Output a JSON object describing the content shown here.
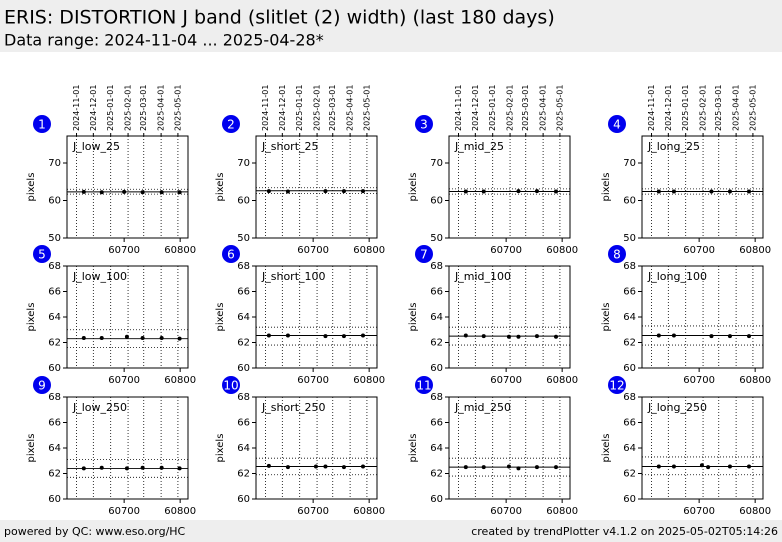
{
  "header": {
    "title": "ERIS: DISTORTION J band (slitlet (2) width) (last 180 days)",
    "subtitle": "Data range: 2024-11-04 ... 2025-04-28*"
  },
  "footer": {
    "left": "powered by QC: www.eso.org/HC",
    "right": "created by trendPlotter v4.1.2 on 2025-05-02T05:14:26"
  },
  "chart_data": [
    {
      "type": "scatter",
      "label": "1",
      "title": "J_low_25",
      "ylabel": "pixels",
      "color": "#000000",
      "x": [
        60628,
        60660,
        60700,
        60733,
        60767,
        60799
      ],
      "values": [
        62.3,
        62.2,
        62.3,
        62.2,
        62.2,
        62.2
      ],
      "ref": {
        "value": 62.3,
        "lower": 61.7,
        "upper": 63.0
      },
      "xlim": [
        60598,
        60814
      ],
      "ylim": [
        50,
        77.2
      ],
      "xticks": [
        60700,
        60800
      ],
      "yticks": [
        50,
        60,
        70
      ],
      "x2ticks": [
        {
          "value": 60615,
          "label": "2024-11-01"
        },
        {
          "value": 60645,
          "label": "2024-12-01"
        },
        {
          "value": 60676,
          "label": "2025-01-01"
        },
        {
          "value": 60707,
          "label": "2025-02-01"
        },
        {
          "value": 60735,
          "label": "2025-03-01"
        },
        {
          "value": 60766,
          "label": "2025-04-01"
        },
        {
          "value": 60796,
          "label": "2025-05-01"
        }
      ]
    },
    {
      "type": "scatter",
      "label": "2",
      "title": "J_short_25",
      "ylabel": "pixels",
      "color": "#000000",
      "x": [
        60621,
        60655,
        60722,
        60755,
        60789
      ],
      "values": [
        62.5,
        62.4,
        62.5,
        62.5,
        62.5
      ],
      "ref": {
        "value": 62.6,
        "lower": 61.9,
        "upper": 63.4
      },
      "xlim": [
        60598,
        60814
      ],
      "ylim": [
        50,
        77.2
      ],
      "xticks": [
        60700,
        60800
      ],
      "yticks": [
        50,
        60,
        70
      ],
      "x2ticks": [
        {
          "value": 60615,
          "label": "2024-11-01"
        },
        {
          "value": 60645,
          "label": "2024-12-01"
        },
        {
          "value": 60676,
          "label": "2025-01-01"
        },
        {
          "value": 60707,
          "label": "2025-02-01"
        },
        {
          "value": 60735,
          "label": "2025-03-01"
        },
        {
          "value": 60766,
          "label": "2025-04-01"
        },
        {
          "value": 60796,
          "label": "2025-05-01"
        }
      ]
    },
    {
      "type": "scatter",
      "label": "3",
      "title": "J_mid_25",
      "ylabel": "pixels",
      "color": "#000000",
      "x": [
        60628,
        60660,
        60722,
        60755,
        60789
      ],
      "values": [
        62.4,
        62.4,
        62.5,
        62.5,
        62.4
      ],
      "ref": {
        "value": 62.4,
        "lower": 61.7,
        "upper": 63.1
      },
      "xlim": [
        60598,
        60814
      ],
      "ylim": [
        50,
        77.2
      ],
      "xticks": [
        60700,
        60800
      ],
      "yticks": [
        50,
        60,
        70
      ],
      "x2ticks": [
        {
          "value": 60615,
          "label": "2024-11-01"
        },
        {
          "value": 60645,
          "label": "2024-12-01"
        },
        {
          "value": 60676,
          "label": "2025-01-01"
        },
        {
          "value": 60707,
          "label": "2025-02-01"
        },
        {
          "value": 60735,
          "label": "2025-03-01"
        },
        {
          "value": 60766,
          "label": "2025-04-01"
        },
        {
          "value": 60796,
          "label": "2025-05-01"
        }
      ]
    },
    {
      "type": "scatter",
      "label": "4",
      "title": "J_long_25",
      "ylabel": "pixels",
      "color": "#000000",
      "x": [
        60628,
        60655,
        60722,
        60755,
        60789
      ],
      "values": [
        62.4,
        62.4,
        62.4,
        62.4,
        62.4
      ],
      "ref": {
        "value": 62.4,
        "lower": 61.7,
        "upper": 63.1
      },
      "xlim": [
        60598,
        60814
      ],
      "ylim": [
        50,
        77.2
      ],
      "xticks": [
        60700,
        60800
      ],
      "yticks": [
        50,
        60,
        70
      ],
      "x2ticks": [
        {
          "value": 60615,
          "label": "2024-11-01"
        },
        {
          "value": 60645,
          "label": "2024-12-01"
        },
        {
          "value": 60676,
          "label": "2025-01-01"
        },
        {
          "value": 60707,
          "label": "2025-02-01"
        },
        {
          "value": 60735,
          "label": "2025-03-01"
        },
        {
          "value": 60766,
          "label": "2025-04-01"
        },
        {
          "value": 60796,
          "label": "2025-05-01"
        }
      ]
    },
    {
      "type": "scatter",
      "label": "5",
      "title": "J_low_100",
      "ylabel": "pixels",
      "color": "#000000",
      "x": [
        60628,
        60660,
        60705,
        60733,
        60767,
        60799
      ],
      "values": [
        62.35,
        62.35,
        62.45,
        62.35,
        62.35,
        62.3
      ],
      "ref": {
        "value": 62.3,
        "lower": 61.6,
        "upper": 63.0
      },
      "xlim": [
        60598,
        60814
      ],
      "ylim": [
        60,
        68
      ],
      "xticks": [
        60700,
        60800
      ],
      "yticks": [
        60,
        62,
        64,
        66,
        68
      ],
      "xgrid": [
        60615,
        60645,
        60676,
        60707,
        60735,
        60766,
        60796
      ]
    },
    {
      "type": "scatter",
      "label": "6",
      "title": "J_short_100",
      "ylabel": "pixels",
      "color": "#000000",
      "x": [
        60621,
        60655,
        60722,
        60755,
        60789
      ],
      "values": [
        62.55,
        62.55,
        62.5,
        62.5,
        62.55
      ],
      "ref": {
        "value": 62.55,
        "lower": 61.8,
        "upper": 63.2
      },
      "xlim": [
        60598,
        60814
      ],
      "ylim": [
        60,
        68
      ],
      "xticks": [
        60700,
        60800
      ],
      "yticks": [
        60,
        62,
        64,
        66,
        68
      ],
      "xgrid": [
        60615,
        60645,
        60676,
        60707,
        60735,
        60766,
        60796
      ]
    },
    {
      "type": "scatter",
      "label": "7",
      "title": "J_mid_100",
      "ylabel": "pixels",
      "color": "#000000",
      "x": [
        60628,
        60660,
        60705,
        60722,
        60755,
        60789
      ],
      "values": [
        62.55,
        62.5,
        62.45,
        62.45,
        62.5,
        62.45
      ],
      "ref": {
        "value": 62.5,
        "lower": 61.8,
        "upper": 63.2
      },
      "xlim": [
        60598,
        60814
      ],
      "ylim": [
        60,
        68
      ],
      "xticks": [
        60700,
        60800
      ],
      "yticks": [
        60,
        62,
        64,
        66,
        68
      ],
      "xgrid": [
        60615,
        60645,
        60676,
        60707,
        60735,
        60766,
        60796
      ]
    },
    {
      "type": "scatter",
      "label": "8",
      "title": "J_long_100",
      "ylabel": "pixels",
      "color": "#000000",
      "x": [
        60628,
        60655,
        60722,
        60755,
        60789
      ],
      "values": [
        62.55,
        62.55,
        62.5,
        62.5,
        62.5
      ],
      "ref": {
        "value": 62.55,
        "lower": 61.8,
        "upper": 63.3
      },
      "xlim": [
        60598,
        60814
      ],
      "ylim": [
        60,
        68
      ],
      "xticks": [
        60700,
        60800
      ],
      "yticks": [
        60,
        62,
        64,
        66,
        68
      ],
      "xgrid": [
        60615,
        60645,
        60676,
        60707,
        60735,
        60766,
        60796
      ]
    },
    {
      "type": "scatter",
      "label": "9",
      "title": "J_low_250",
      "ylabel": "pixels",
      "color": "#000000",
      "x": [
        60628,
        60660,
        60705,
        60733,
        60767,
        60799
      ],
      "values": [
        62.4,
        62.45,
        62.4,
        62.45,
        62.45,
        62.4
      ],
      "ref": {
        "value": 62.4,
        "lower": 61.7,
        "upper": 63.1
      },
      "xlim": [
        60598,
        60814
      ],
      "ylim": [
        60,
        68
      ],
      "xticks": [
        60700,
        60800
      ],
      "yticks": [
        60,
        62,
        64,
        66,
        68
      ],
      "xgrid": [
        60615,
        60645,
        60676,
        60707,
        60735,
        60766,
        60796
      ]
    },
    {
      "type": "scatter",
      "label": "10",
      "title": "J_short_250",
      "ylabel": "pixels",
      "color": "#000000",
      "x": [
        60621,
        60655,
        60705,
        60722,
        60755,
        60789
      ],
      "values": [
        62.6,
        62.5,
        62.55,
        62.55,
        62.5,
        62.55
      ],
      "ref": {
        "value": 62.55,
        "lower": 61.9,
        "upper": 63.2
      },
      "xlim": [
        60598,
        60814
      ],
      "ylim": [
        60,
        68
      ],
      "xticks": [
        60700,
        60800
      ],
      "yticks": [
        60,
        62,
        64,
        66,
        68
      ],
      "xgrid": [
        60615,
        60645,
        60676,
        60707,
        60735,
        60766,
        60796
      ]
    },
    {
      "type": "scatter",
      "label": "11",
      "title": "J_mid_250",
      "ylabel": "pixels",
      "color": "#000000",
      "x": [
        60628,
        60660,
        60705,
        60722,
        60755,
        60789
      ],
      "values": [
        62.5,
        62.5,
        62.55,
        62.4,
        62.5,
        62.5
      ],
      "ref": {
        "value": 62.5,
        "lower": 61.8,
        "upper": 63.2
      },
      "xlim": [
        60598,
        60814
      ],
      "ylim": [
        60,
        68
      ],
      "xticks": [
        60700,
        60800
      ],
      "yticks": [
        60,
        62,
        64,
        66,
        68
      ],
      "xgrid": [
        60615,
        60645,
        60676,
        60707,
        60735,
        60766,
        60796
      ]
    },
    {
      "type": "scatter",
      "label": "12",
      "title": "J_long_250",
      "ylabel": "pixels",
      "color": "#000000",
      "x": [
        60628,
        60655,
        60705,
        60716,
        60755,
        60789
      ],
      "values": [
        62.55,
        62.55,
        62.65,
        62.5,
        62.55,
        62.55
      ],
      "ref": {
        "value": 62.55,
        "lower": 61.9,
        "upper": 63.3
      },
      "xlim": [
        60598,
        60814
      ],
      "ylim": [
        60,
        68
      ],
      "xticks": [
        60700,
        60800
      ],
      "yticks": [
        60,
        62,
        64,
        66,
        68
      ],
      "xgrid": [
        60615,
        60645,
        60676,
        60707,
        60735,
        60766,
        60796
      ]
    }
  ]
}
